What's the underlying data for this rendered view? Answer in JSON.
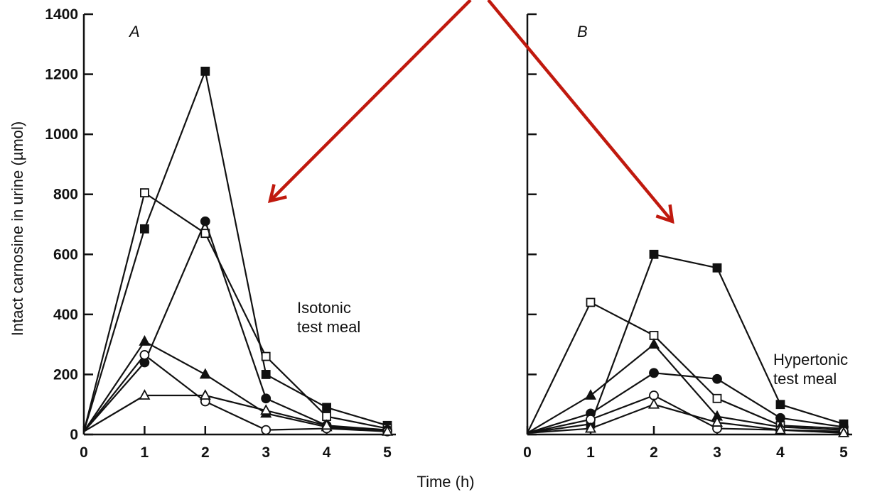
{
  "chart_data": [
    {
      "type": "line",
      "panel_label": "A",
      "annotation": [
        "Isotonic",
        "test meal"
      ],
      "ylabel": "Intact carnosine in urine (µmol)",
      "x": [
        0,
        1,
        2,
        3,
        4,
        5
      ],
      "xticks": [
        "0",
        "1",
        "2",
        "3",
        "4",
        "5"
      ],
      "xlim": [
        0,
        5
      ],
      "ylim": [
        0,
        1400
      ],
      "yticks": [
        "0",
        "200",
        "400",
        "600",
        "800",
        "1000",
        "1200",
        "1400"
      ],
      "series": [
        {
          "marker": "filled-square",
          "values": [
            10,
            685,
            1210,
            200,
            90,
            30
          ]
        },
        {
          "marker": "open-square",
          "values": [
            10,
            805,
            670,
            260,
            60,
            20
          ]
        },
        {
          "marker": "filled-circle",
          "values": [
            10,
            240,
            710,
            120,
            30,
            15
          ]
        },
        {
          "marker": "filled-triangle",
          "values": [
            10,
            310,
            200,
            70,
            25,
            10
          ]
        },
        {
          "marker": "open-circle",
          "values": [
            10,
            265,
            110,
            15,
            20,
            10
          ]
        },
        {
          "marker": "open-triangle",
          "values": [
            10,
            130,
            130,
            80,
            30,
            10
          ]
        }
      ]
    },
    {
      "type": "line",
      "panel_label": "B",
      "annotation": [
        "Hypertonic",
        "test meal"
      ],
      "x": [
        0,
        1,
        2,
        3,
        4,
        5
      ],
      "xticks": [
        "0",
        "1",
        "2",
        "3",
        "4",
        "5"
      ],
      "xlim": [
        0,
        5
      ],
      "ylim": [
        0,
        1400
      ],
      "series": [
        {
          "marker": "filled-square",
          "values": [
            5,
            35,
            600,
            555,
            100,
            35
          ]
        },
        {
          "marker": "open-square",
          "values": [
            5,
            440,
            330,
            120,
            30,
            20
          ]
        },
        {
          "marker": "filled-circle",
          "values": [
            5,
            70,
            205,
            185,
            55,
            25
          ]
        },
        {
          "marker": "filled-triangle",
          "values": [
            5,
            130,
            300,
            60,
            25,
            15
          ]
        },
        {
          "marker": "open-circle",
          "values": [
            5,
            50,
            130,
            20,
            15,
            10
          ]
        },
        {
          "marker": "open-triangle",
          "values": [
            5,
            20,
            100,
            40,
            15,
            5
          ]
        }
      ]
    }
  ],
  "shared_xlabel": "Time (h)",
  "colors": {
    "ink": "#111111",
    "arrow": "#c0190e"
  },
  "arrows": [
    {
      "from": [
        662,
        0
      ],
      "to": [
        380,
        283
      ]
    },
    {
      "from": [
        687,
        0
      ],
      "to": [
        946,
        312
      ]
    }
  ]
}
